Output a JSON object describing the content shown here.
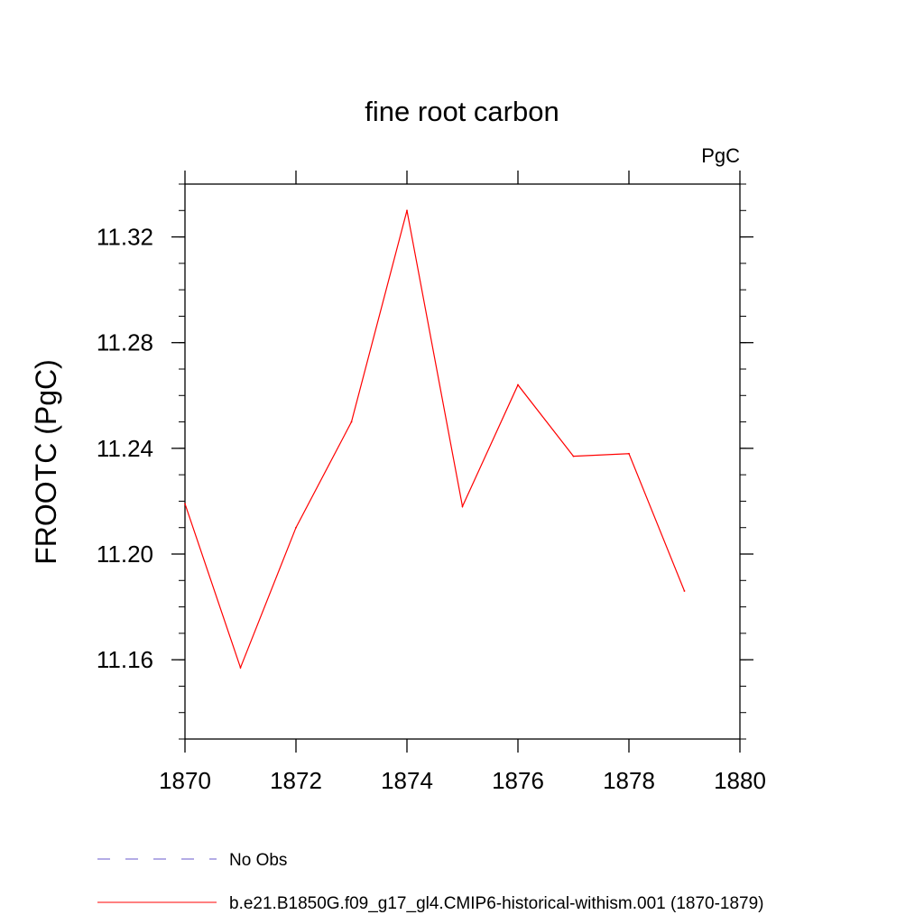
{
  "chart_data": {
    "type": "line",
    "title": "fine root carbon",
    "units": "PgC",
    "xlabel": "",
    "ylabel": "FROOTC  (PgC)",
    "xlim": [
      1870,
      1880
    ],
    "ylim": [
      11.13,
      11.34
    ],
    "x_ticks": [
      1870,
      1872,
      1874,
      1876,
      1878,
      1880
    ],
    "x_tick_labels": [
      "1870",
      "1872",
      "1874",
      "1876",
      "1878",
      "1880"
    ],
    "y_ticks": [
      11.16,
      11.2,
      11.24,
      11.28,
      11.32
    ],
    "y_tick_labels": [
      "11.16",
      "11.20",
      "11.24",
      "11.28",
      "11.32"
    ],
    "grid": false,
    "series": [
      {
        "name": "b.e21.B1850G.f09_g17_gl4.CMIP6-historical-withism.001 (1870-1879)",
        "color": "#ff0000",
        "x": [
          1870,
          1871,
          1872,
          1873,
          1874,
          1875,
          1876,
          1877,
          1878,
          1879
        ],
        "values": [
          11.219,
          11.157,
          11.21,
          11.25,
          11.33,
          11.218,
          11.264,
          11.237,
          11.238,
          11.186
        ]
      }
    ],
    "legend": {
      "placement": "bottom-left",
      "entries": [
        {
          "label": "No Obs",
          "color": "#6a5acd",
          "style": "dashed"
        },
        {
          "label": "b.e21.B1850G.f09_g17_gl4.CMIP6-historical-withism.001 (1870-1879)",
          "color": "#ff0000",
          "style": "solid"
        }
      ]
    }
  }
}
